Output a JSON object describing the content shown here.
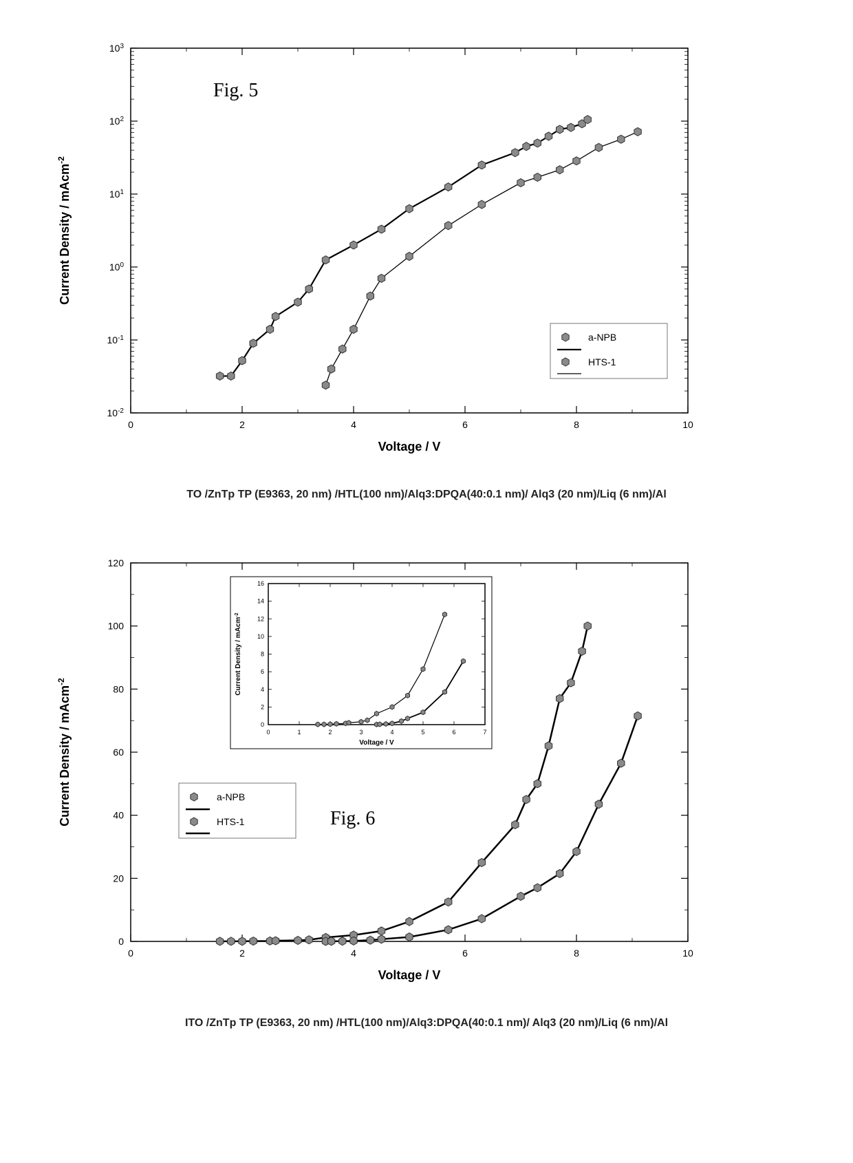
{
  "figure5": {
    "type": "scatter-line-logY",
    "title_label": "Fig. 5",
    "xlabel": "Voltage / V",
    "ylabel": "Current Density / mAcm",
    "ylabel_sup": "-2",
    "xlim": [
      0,
      10
    ],
    "xtick_step": 2,
    "ylim_exp": [
      -2,
      3
    ],
    "background_color": "#ffffff",
    "marker_fill": "#8a8a8a",
    "marker_stroke": "#333333",
    "marker_size": 6,
    "line_color": "#000000",
    "series_aNPB": {
      "label": "a-NPB",
      "line_width": 2.2,
      "points": [
        [
          1.6,
          0.032
        ],
        [
          1.8,
          0.032
        ],
        [
          2.0,
          0.052
        ],
        [
          2.2,
          0.09
        ],
        [
          2.5,
          0.14
        ],
        [
          2.6,
          0.21
        ],
        [
          3.0,
          0.33
        ],
        [
          3.2,
          0.5
        ],
        [
          3.5,
          1.25
        ],
        [
          4.0,
          2.0
        ],
        [
          4.5,
          3.3
        ],
        [
          5.0,
          6.3
        ],
        [
          5.7,
          12.5
        ],
        [
          6.3,
          25
        ],
        [
          6.9,
          37
        ],
        [
          7.1,
          45
        ],
        [
          7.3,
          50
        ],
        [
          7.5,
          62
        ],
        [
          7.7,
          77
        ],
        [
          7.9,
          82
        ],
        [
          8.1,
          92
        ],
        [
          8.2,
          105
        ]
      ]
    },
    "series_HTS1": {
      "label": "HTS-1",
      "line_width": 1.3,
      "points": [
        [
          3.5,
          0.024
        ],
        [
          3.6,
          0.04
        ],
        [
          3.8,
          0.075
        ],
        [
          4.0,
          0.14
        ],
        [
          4.3,
          0.4
        ],
        [
          4.5,
          0.7
        ],
        [
          5.0,
          1.4
        ],
        [
          5.7,
          3.7
        ],
        [
          6.3,
          7.2
        ],
        [
          7.0,
          14.3
        ],
        [
          7.3,
          17
        ],
        [
          7.7,
          21.5
        ],
        [
          8.0,
          28.5
        ],
        [
          8.4,
          43.5
        ],
        [
          8.8,
          56.5
        ],
        [
          9.1,
          71.5
        ]
      ]
    },
    "legend_items": [
      "a-NPB",
      "HTS-1"
    ]
  },
  "caption5": "TO /ZnTp TP (E9363, 20 nm) /HTL(100 nm)/Alq3:DPQA(40:0.1 nm)/ Alq3 (20 nm)/Liq (6 nm)/Al",
  "figure6": {
    "type": "scatter-line",
    "title_label": "Fig. 6",
    "xlabel": "Voltage / V",
    "ylabel": "Current Density / mAcm",
    "ylabel_sup": "-2",
    "xlim": [
      0,
      10
    ],
    "xtick_step": 2,
    "ylim": [
      0,
      120
    ],
    "ytick_step": 20,
    "background_color": "#ffffff",
    "marker_fill": "#8a8a8a",
    "marker_stroke": "#333333",
    "marker_size": 6,
    "line_color": "#000000",
    "series_aNPB": {
      "label": "a-NPB",
      "line_width": 2.5,
      "points": [
        [
          1.6,
          0.03
        ],
        [
          1.8,
          0.03
        ],
        [
          2.0,
          0.05
        ],
        [
          2.2,
          0.09
        ],
        [
          2.5,
          0.14
        ],
        [
          2.6,
          0.21
        ],
        [
          3.0,
          0.33
        ],
        [
          3.2,
          0.5
        ],
        [
          3.5,
          1.25
        ],
        [
          4.0,
          2.0
        ],
        [
          4.5,
          3.3
        ],
        [
          5.0,
          6.3
        ],
        [
          5.7,
          12.5
        ],
        [
          6.3,
          25
        ],
        [
          6.9,
          37
        ],
        [
          7.1,
          45
        ],
        [
          7.3,
          50
        ],
        [
          7.5,
          62
        ],
        [
          7.7,
          77
        ],
        [
          7.9,
          82
        ],
        [
          8.1,
          92
        ],
        [
          8.2,
          100
        ]
      ]
    },
    "series_HTS1": {
      "label": "HTS-1",
      "line_width": 2.5,
      "points": [
        [
          3.5,
          0.02
        ],
        [
          3.6,
          0.04
        ],
        [
          3.8,
          0.08
        ],
        [
          4.0,
          0.14
        ],
        [
          4.3,
          0.4
        ],
        [
          4.5,
          0.7
        ],
        [
          5.0,
          1.4
        ],
        [
          5.7,
          3.7
        ],
        [
          6.3,
          7.2
        ],
        [
          7.0,
          14.3
        ],
        [
          7.3,
          17
        ],
        [
          7.7,
          21.5
        ],
        [
          8.0,
          28.5
        ],
        [
          8.4,
          43.5
        ],
        [
          8.8,
          56.5
        ],
        [
          9.1,
          71.5
        ]
      ]
    },
    "legend_items": [
      "a-NPB",
      "HTS-1"
    ],
    "inset": {
      "xlabel": "Voltage / V",
      "ylabel": "Current Density / mAcm",
      "ylabel_sup": "-2",
      "xlim": [
        0,
        7
      ],
      "xtick_step": 1,
      "ylim": [
        0,
        16
      ],
      "ytick_step": 2,
      "series_aNPB_points": [
        [
          1.6,
          0.03
        ],
        [
          1.8,
          0.03
        ],
        [
          2.0,
          0.05
        ],
        [
          2.2,
          0.09
        ],
        [
          2.5,
          0.14
        ],
        [
          2.6,
          0.21
        ],
        [
          3.0,
          0.33
        ],
        [
          3.2,
          0.5
        ],
        [
          3.5,
          1.25
        ],
        [
          4.0,
          2.0
        ],
        [
          4.5,
          3.3
        ],
        [
          5.0,
          6.3
        ],
        [
          5.7,
          12.5
        ]
      ],
      "series_HTS1_points": [
        [
          3.5,
          0.02
        ],
        [
          3.6,
          0.04
        ],
        [
          3.8,
          0.08
        ],
        [
          4.0,
          0.14
        ],
        [
          4.3,
          0.4
        ],
        [
          4.5,
          0.7
        ],
        [
          5.0,
          1.4
        ],
        [
          5.7,
          3.7
        ],
        [
          6.3,
          7.2
        ]
      ]
    }
  },
  "caption6": "ITO /ZnTp TP (E9363, 20 nm) /HTL(100 nm)/Alq3:DPQA(40:0.1 nm)/ Alq3 (20 nm)/Liq (6 nm)/Al"
}
